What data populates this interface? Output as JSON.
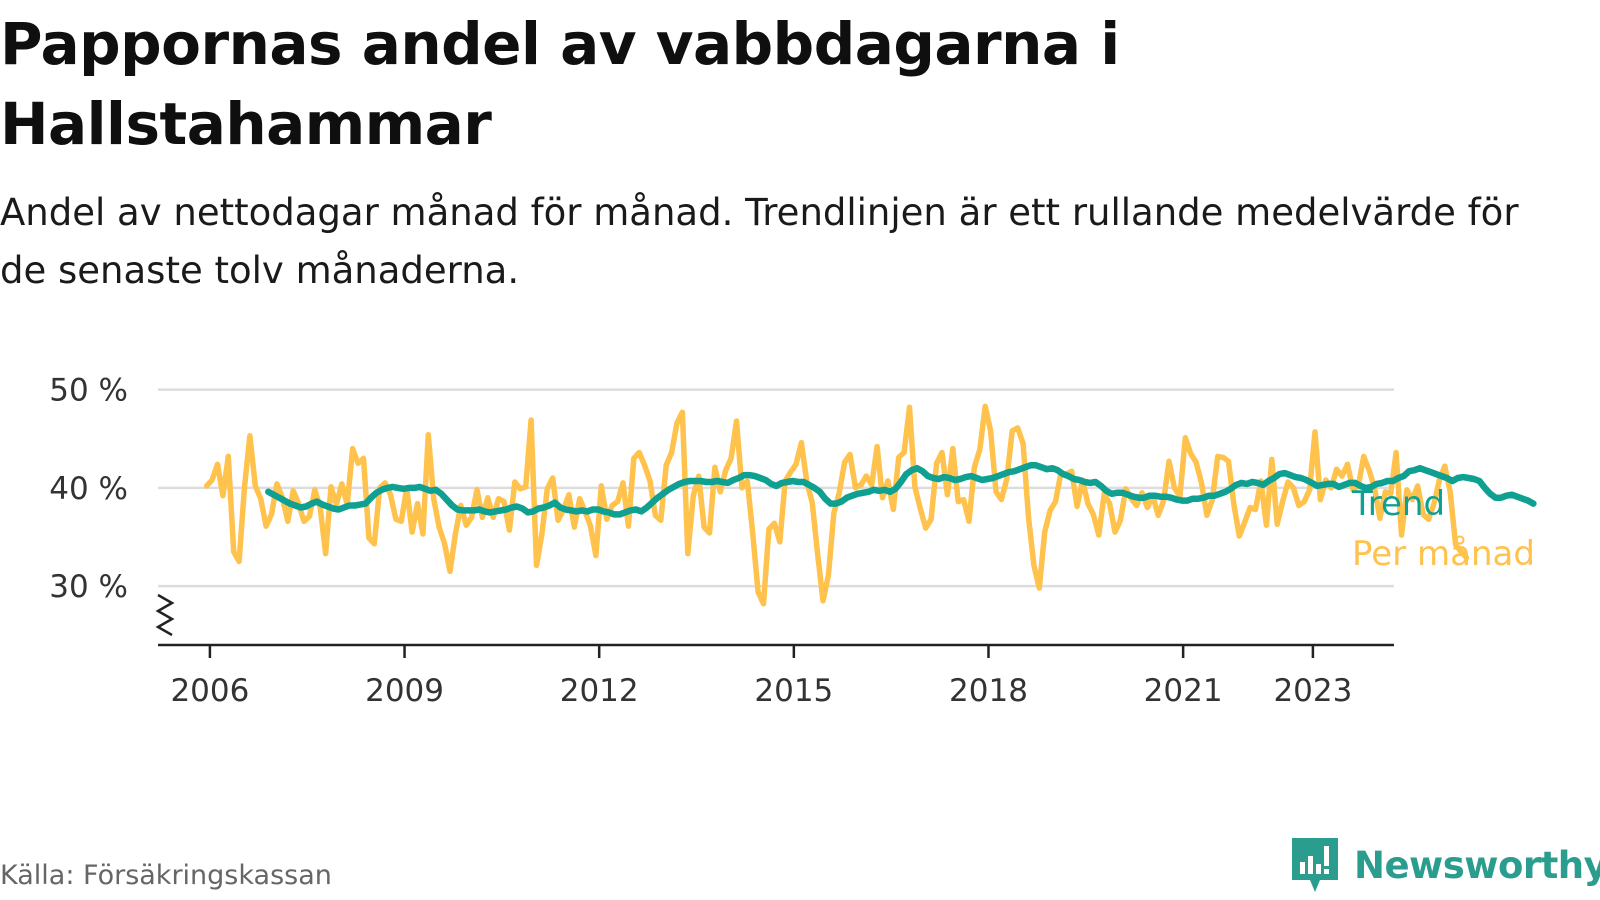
{
  "header": {
    "title": "Pappornas andel av vabbdagarna i Hallstahammar",
    "subtitle": "Andel av nettodagar månad för månad. Trendlinjen är ett rullande medelvärde för de senaste tolv månaderna."
  },
  "footer": {
    "source": "Källa: Försäkringskassan",
    "brand": "Newsworthy"
  },
  "colors": {
    "trend": "#10a091",
    "monthly": "#ffc24d",
    "grid": "#dddddd",
    "axis": "#222222",
    "brand": "#2b9d8f"
  },
  "chart_data": {
    "type": "line",
    "x_ticks": [
      "2006",
      "2009",
      "2012",
      "2015",
      "2018",
      "2021",
      "2023"
    ],
    "y_ticks": [
      "30 %",
      "40 %",
      "50 %"
    ],
    "y_tick_values": [
      30,
      40,
      50
    ],
    "xlim": [
      2005.2,
      2024.25
    ],
    "ylim": [
      24,
      52
    ],
    "y_axis_break": true,
    "grid": true,
    "legend": "inline-right",
    "series": [
      {
        "name": "Trend",
        "start": 2006.9,
        "step": 0.08333,
        "values": [
          39.6,
          39.3,
          39.0,
          38.7,
          38.4,
          38.2,
          38.0,
          38.1,
          38.4,
          38.6,
          38.3,
          38.1,
          37.9,
          37.8,
          38.0,
          38.2,
          38.2,
          38.3,
          38.4,
          39.0,
          39.5,
          39.8,
          40.0,
          40.1,
          40.0,
          39.9,
          40.0,
          40.0,
          40.1,
          39.9,
          39.7,
          39.8,
          39.4,
          38.8,
          38.2,
          37.8,
          37.7,
          37.7,
          37.7,
          37.8,
          37.6,
          37.5,
          37.6,
          37.7,
          37.8,
          38.0,
          38.1,
          37.9,
          37.5,
          37.6,
          37.9,
          38.0,
          38.2,
          38.5,
          38.0,
          37.8,
          37.7,
          37.6,
          37.7,
          37.6,
          37.8,
          37.8,
          37.6,
          37.5,
          37.3,
          37.3,
          37.5,
          37.7,
          37.8,
          37.6,
          38.0,
          38.5,
          39.0,
          39.4,
          39.8,
          40.1,
          40.4,
          40.6,
          40.7,
          40.7,
          40.7,
          40.6,
          40.6,
          40.7,
          40.6,
          40.5,
          40.8,
          41.0,
          41.3,
          41.3,
          41.2,
          41.0,
          40.8,
          40.4,
          40.2,
          40.5,
          40.6,
          40.7,
          40.6,
          40.6,
          40.3,
          40.0,
          39.6,
          38.9,
          38.4,
          38.4,
          38.6,
          39.0,
          39.2,
          39.4,
          39.5,
          39.6,
          39.8,
          39.7,
          39.8,
          39.6,
          39.9,
          40.6,
          41.4,
          41.8,
          42.0,
          41.7,
          41.2,
          41.0,
          40.9,
          41.1,
          41.0,
          40.8,
          40.9,
          41.1,
          41.2,
          41.0,
          40.8,
          40.9,
          41.0,
          41.2,
          41.4,
          41.6,
          41.7,
          41.9,
          42.1,
          42.3,
          42.3,
          42.1,
          41.9,
          42.0,
          41.8,
          41.4,
          41.2,
          40.9,
          40.8,
          40.6,
          40.5,
          40.6,
          40.2,
          39.7,
          39.4,
          39.5,
          39.5,
          39.3,
          39.1,
          39.0,
          39.0,
          39.2,
          39.2,
          39.1,
          39.1,
          39.0,
          38.8,
          38.7,
          38.7,
          38.9,
          38.9,
          39.0,
          39.2,
          39.2,
          39.4,
          39.6,
          39.9,
          40.3,
          40.5,
          40.4,
          40.6,
          40.5,
          40.3,
          40.7,
          41.0,
          41.4,
          41.5,
          41.3,
          41.1,
          41.0,
          40.8,
          40.5,
          40.2,
          40.3,
          40.4,
          40.4,
          40.1,
          40.3,
          40.5,
          40.5,
          40.2,
          40.0,
          40.1,
          40.4,
          40.5,
          40.7,
          40.7,
          41.0,
          41.2,
          41.7,
          41.8,
          42.0,
          41.8,
          41.6,
          41.4,
          41.2,
          41.0,
          40.7,
          41.0,
          41.1,
          41.0,
          40.9,
          40.7,
          40.0,
          39.4,
          39.0,
          39.0,
          39.2,
          39.3,
          39.1,
          38.9,
          38.7,
          38.4
        ]
      },
      {
        "name": "Per månad",
        "start": 2005.95,
        "step": 0.08333,
        "values": [
          40.2,
          40.8,
          42.4,
          39.2,
          43.2,
          33.5,
          32.5,
          40.1,
          45.3,
          40.2,
          38.9,
          36.1,
          37.3,
          40.4,
          39.0,
          36.6,
          39.7,
          38.4,
          36.6,
          37.1,
          39.8,
          38.0,
          33.3,
          40.1,
          38.3,
          40.4,
          38.3,
          44.0,
          42.5,
          43.0,
          34.9,
          34.3,
          40.0,
          40.5,
          39.3,
          36.8,
          36.6,
          40.0,
          35.5,
          38.4,
          35.3,
          45.4,
          38.9,
          36.0,
          34.3,
          31.5,
          35.3,
          38.2,
          36.2,
          37.0,
          39.8,
          37.0,
          39.0,
          37.0,
          38.9,
          38.6,
          35.7,
          40.6,
          39.9,
          40.1,
          46.9,
          32.1,
          35.3,
          39.9,
          41.0,
          36.7,
          37.8,
          39.3,
          36.0,
          38.9,
          37.6,
          36.1,
          33.1,
          40.2,
          36.8,
          38.2,
          38.6,
          40.5,
          36.1,
          43.0,
          43.6,
          42.3,
          40.7,
          37.2,
          36.7,
          42.3,
          43.6,
          46.6,
          47.7,
          33.3,
          39.2,
          41.2,
          36.0,
          35.4,
          42.1,
          39.6,
          41.8,
          43.0,
          46.8,
          40.0,
          40.7,
          35.4,
          29.4,
          28.2,
          35.8,
          36.4,
          34.5,
          40.7,
          41.6,
          42.4,
          44.6,
          40.6,
          38.5,
          33.3,
          28.5,
          31.1,
          37.4,
          39.5,
          42.6,
          43.4,
          40.0,
          40.3,
          41.2,
          40.3,
          44.2,
          39.0,
          40.7,
          37.8,
          43.1,
          43.6,
          48.2,
          40.1,
          37.9,
          35.9,
          36.8,
          42.5,
          43.6,
          39.3,
          44.0,
          38.6,
          38.8,
          36.6,
          42.1,
          43.9,
          48.3,
          45.8,
          39.6,
          38.8,
          40.9,
          45.8,
          46.1,
          44.5,
          37.0,
          32.1,
          29.8,
          35.5,
          37.7,
          38.6,
          41.5,
          41.4,
          41.7,
          38.1,
          40.8,
          38.4,
          37.3,
          35.2,
          39.4,
          38.4,
          35.5,
          36.7,
          39.9,
          38.9,
          38.2,
          39.5,
          38.0,
          39.2,
          37.2,
          38.7,
          42.7,
          40.0,
          39.1,
          45.1,
          43.5,
          42.6,
          40.5,
          37.2,
          38.8,
          43.2,
          43.1,
          42.7,
          38.3,
          35.1,
          36.5,
          38.0,
          37.8,
          40.7,
          36.2,
          42.9,
          36.3,
          38.6,
          40.6,
          40.0,
          38.2,
          38.6,
          39.8,
          45.7,
          38.8,
          40.8,
          40.0,
          41.9,
          41.2,
          42.4,
          39.8,
          40.2,
          43.2,
          41.8,
          40.0,
          36.9,
          39.6,
          39.4,
          43.6,
          35.2,
          39.8,
          38.8,
          40.2,
          37.3,
          36.8,
          38.4,
          40.8,
          42.2,
          39.6,
          34.2,
          33.5,
          32.9
        ]
      }
    ]
  }
}
